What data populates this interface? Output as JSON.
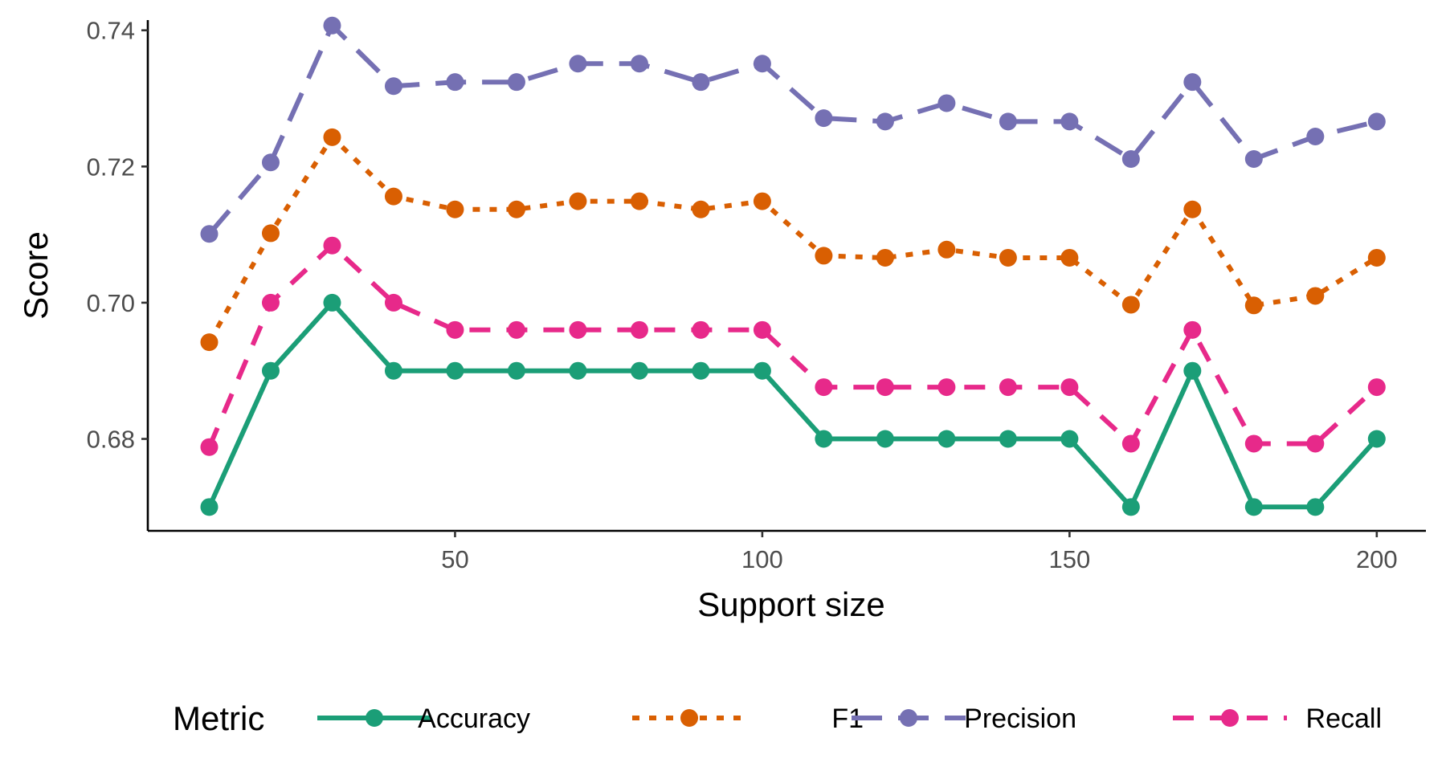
{
  "chart_data": {
    "type": "line",
    "title": "",
    "xlabel": "Support size",
    "ylabel": "Score",
    "x": [
      10,
      20,
      30,
      40,
      50,
      60,
      70,
      80,
      90,
      100,
      110,
      120,
      130,
      140,
      150,
      160,
      170,
      180,
      190,
      200
    ],
    "xlim": [
      0,
      208
    ],
    "ylim": [
      0.6665,
      0.7415
    ],
    "xticks": [
      50,
      100,
      150,
      200
    ],
    "xtick_labels": [
      "50",
      "100",
      "150",
      "200"
    ],
    "yticks": [
      0.68,
      0.7,
      0.72,
      0.74
    ],
    "ytick_labels": [
      "0.68",
      "0.70",
      "0.72",
      "0.74"
    ],
    "grid": false,
    "legend": {
      "title": "Metric",
      "placement": "bottom"
    },
    "series": [
      {
        "name": "Accuracy",
        "color": "#1b9e77",
        "dash": "solid",
        "values": [
          0.67,
          0.69,
          0.7,
          0.69,
          0.69,
          0.69,
          0.69,
          0.69,
          0.69,
          0.69,
          0.68,
          0.68,
          0.68,
          0.68,
          0.68,
          0.67,
          0.69,
          0.67,
          0.67,
          0.68
        ]
      },
      {
        "name": "F1",
        "color": "#d95f02",
        "dash": "dotted",
        "values": [
          0.6942,
          0.7102,
          0.7243,
          0.7156,
          0.7137,
          0.7137,
          0.7149,
          0.7149,
          0.7137,
          0.7149,
          0.7069,
          0.7066,
          0.7078,
          0.7066,
          0.7066,
          0.6997,
          0.7137,
          0.6996,
          0.701,
          0.7066
        ]
      },
      {
        "name": "Precision",
        "color": "#7570b3",
        "dash": "longdash",
        "values": [
          0.7101,
          0.7206,
          0.7407,
          0.7318,
          0.7324,
          0.7324,
          0.7351,
          0.7351,
          0.7324,
          0.7351,
          0.7271,
          0.7266,
          0.7293,
          0.7266,
          0.7266,
          0.7211,
          0.7324,
          0.7211,
          0.7244,
          0.7266
        ]
      },
      {
        "name": "Recall",
        "color": "#e7298a",
        "dash": "dashed",
        "values": [
          0.6788,
          0.7,
          0.7084,
          0.7,
          0.696,
          0.696,
          0.696,
          0.696,
          0.696,
          0.696,
          0.6876,
          0.6876,
          0.6876,
          0.6876,
          0.6876,
          0.6793,
          0.696,
          0.6793,
          0.6793,
          0.6876
        ]
      }
    ]
  }
}
